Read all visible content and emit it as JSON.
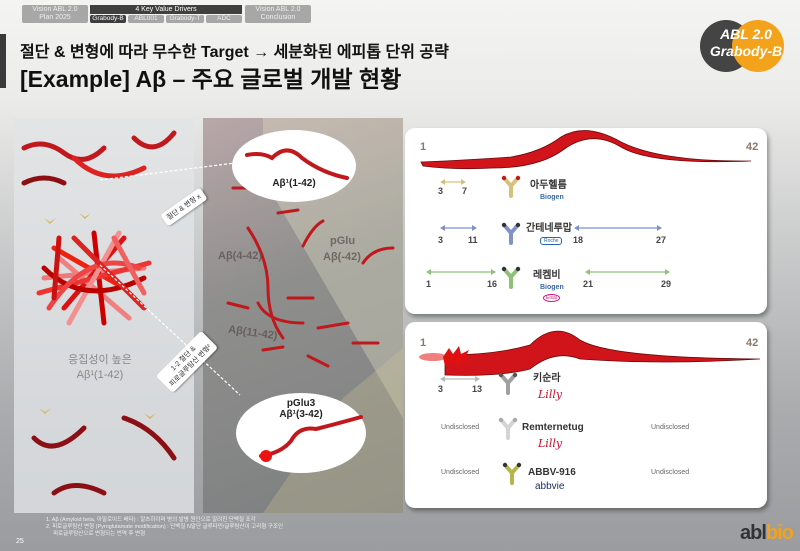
{
  "nav": {
    "left": {
      "line1": "Vision ABL 2.0",
      "line2": "Plan 2025"
    },
    "middle": {
      "title": "4 Key Value Drivers",
      "tabs": [
        "Grabody-B",
        "ABL001",
        "Grabody-T",
        "ADC"
      ],
      "active": 0
    },
    "right": {
      "line1": "Vision ABL 2.0",
      "line2": "Conclusion"
    }
  },
  "header": {
    "subtitle": "절단 & 변형에 따라 무수한 Target → 세분화된 에피톱 단위 공략",
    "title": "[Example] Aβ – 주요 글로벌 개발 현황",
    "badge": {
      "line1": "ABL 2.0",
      "line2": "Grabody-B"
    }
  },
  "left_panel": {
    "label_line1": "응집성이 높은",
    "label_line2": "Aβ¹(1-42)"
  },
  "callouts": {
    "top": "절단 & 변형 x",
    "bottom_line1": "1-2 절단 &",
    "bottom_line2": "피로글루탐산 변형²"
  },
  "middle_panel": {
    "ellipse_top": "Aβ¹(1-42)",
    "ellipse_bottom_line1": "pGlu3",
    "ellipse_bottom_line2": "Aβ¹(3-42)",
    "fragments": [
      "Aβ(4-42)",
      "pGlu",
      "Aβ(-42)",
      "Aβ(11-42)"
    ]
  },
  "top_box": {
    "start": "1",
    "end": "42",
    "rows": [
      {
        "name": "아두헬름",
        "company": "Biogen",
        "color": "#d9c07a",
        "ranges": [
          [
            "3",
            "7"
          ]
        ]
      },
      {
        "name": "간테네루맙",
        "company": "Roche",
        "color": "#7f92c9",
        "ranges": [
          [
            "3",
            "11"
          ],
          [
            "18",
            "27"
          ]
        ]
      },
      {
        "name": "레켐비",
        "company": "Biogen",
        "company2": "Eisai",
        "color": "#8fc07a",
        "ranges": [
          [
            "1",
            "16"
          ],
          [
            "21",
            "29"
          ]
        ]
      }
    ]
  },
  "bottom_box": {
    "start": "1",
    "end": "42",
    "rows": [
      {
        "name": "키순라",
        "company": "Lilly",
        "color": "#b9b9b9",
        "ranges": [
          [
            "3",
            "13"
          ]
        ]
      },
      {
        "name": "Remternetug",
        "company": "Lilly",
        "left": "Undisclosed",
        "right": "Undisclosed"
      },
      {
        "name": "ABBV-916",
        "company": "abbvie",
        "left": "Undisclosed",
        "right": "Undisclosed"
      }
    ]
  },
  "footnotes": [
    "1. Aβ (Amyloid beta, 아밀로이드 베타) : 알츠하이머 병의 발병 원인으로 알려진 단백질 조각",
    "2. 피로글루탐산 변형 (Pyroglutamate modification) : 단백질 N말단 글루타민/글루탐산이 고리형 구조인",
    "피로글루탐산으로 변형되는 번역 후 변형"
  ],
  "page_number": "25",
  "logo": {
    "text1": "abl",
    "text2": "bio"
  },
  "colors": {
    "accent": "#f3a21b",
    "dark": "#404040",
    "worm": "#d0141a"
  }
}
